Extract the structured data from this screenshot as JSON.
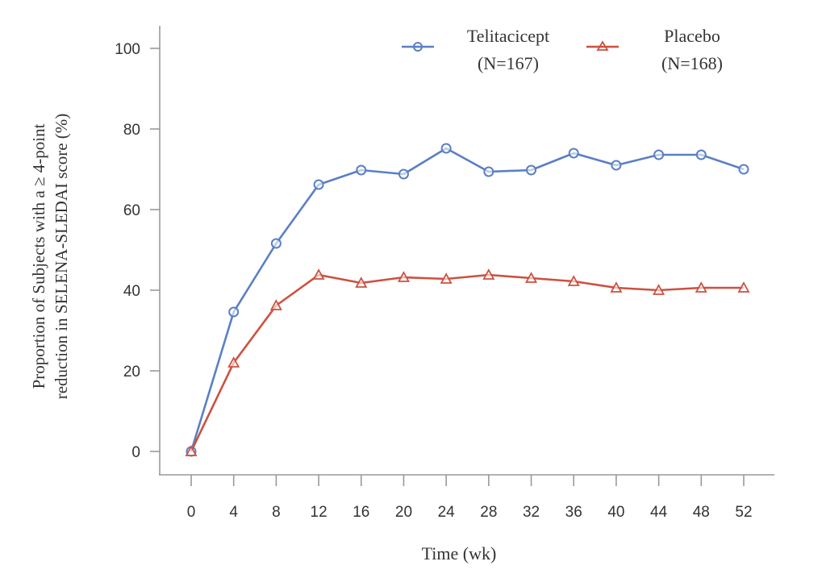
{
  "chart_data": {
    "type": "line",
    "title": "",
    "xlabel": "Time (wk)",
    "ylabel_lines": [
      "Proportion of Subjects with a ≥ 4-point",
      "reduction in SELENA-SLEDAI score (%)"
    ],
    "x": [
      0,
      4,
      8,
      12,
      16,
      20,
      24,
      28,
      32,
      36,
      40,
      44,
      48,
      52
    ],
    "xticks": [
      "0",
      "4",
      "8",
      "12",
      "16",
      "20",
      "24",
      "28",
      "32",
      "36",
      "40",
      "44",
      "48",
      "52"
    ],
    "yticks": [
      "0",
      "20",
      "40",
      "60",
      "80",
      "100"
    ],
    "xlim": [
      -3,
      56
    ],
    "ylim": [
      0,
      100
    ],
    "grid": false,
    "legend_position": "top-right",
    "series": [
      {
        "name": "Telitacicept",
        "n_label": "(N=167)",
        "color": "#5b7fc4",
        "marker": "circle",
        "values": [
          0,
          34.6,
          51.6,
          66.2,
          69.8,
          68.8,
          75.2,
          69.4,
          69.8,
          74.0,
          71.0,
          73.6,
          73.6,
          70.0
        ]
      },
      {
        "name": "Placebo",
        "n_label": "(N=168)",
        "color": "#cc5140",
        "marker": "triangle",
        "values": [
          0,
          22.0,
          36.2,
          43.8,
          41.8,
          43.2,
          42.8,
          43.8,
          43.0,
          42.2,
          40.6,
          40.0,
          40.6,
          40.6
        ]
      }
    ]
  }
}
